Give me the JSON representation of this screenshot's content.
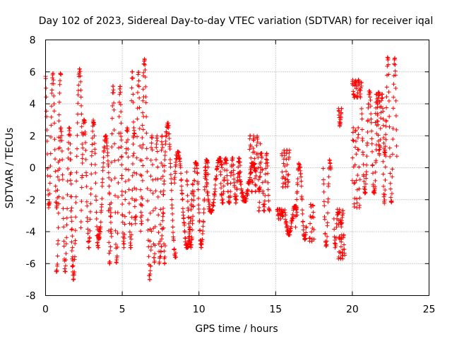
{
  "chart_data": {
    "type": "scatter",
    "title": "Day 102 of 2023, Sidereal Day-to-day VTEC variation (SDTVAR) for receiver iqal",
    "xlabel": "GPS time / hours",
    "ylabel": "SDTVAR / TECUs",
    "xlim": [
      0,
      25
    ],
    "ylim": [
      -8,
      8
    ],
    "xticks": [
      "0",
      "5",
      "10",
      "15",
      "20",
      "25"
    ],
    "yticks": [
      "-8",
      "-6",
      "-4",
      "-2",
      "0",
      "2",
      "4",
      "6",
      "8"
    ],
    "grid": true,
    "marker": "plus",
    "color": "#ff0000",
    "series": [
      {
        "name": "SDTVAR",
        "segments": [
          {
            "x0": 0.0,
            "x1": 1.0,
            "lo": -2.5,
            "hi": 5.9
          },
          {
            "x0": 0.7,
            "x1": 1.8,
            "lo": -6.5,
            "hi": 2.5
          },
          {
            "x0": 1.6,
            "x1": 2.4,
            "lo": -7.0,
            "hi": 6.2
          },
          {
            "x0": 2.3,
            "x1": 3.5,
            "lo": -5.0,
            "hi": 3.0
          },
          {
            "x0": 3.4,
            "x1": 4.3,
            "lo": -4.5,
            "hi": 2.0
          },
          {
            "x0": 4.1,
            "x1": 5.0,
            "lo": -6.0,
            "hi": 5.1
          },
          {
            "x0": 4.9,
            "x1": 5.8,
            "lo": -5.0,
            "hi": 2.5
          },
          {
            "x0": 5.6,
            "x1": 6.4,
            "lo": -3.5,
            "hi": 6.0
          },
          {
            "x0": 6.2,
            "x1": 6.9,
            "lo": -7.0,
            "hi": 6.8
          },
          {
            "x0": 6.8,
            "x1": 7.8,
            "lo": -6.0,
            "hi": 2.0
          },
          {
            "x0": 7.5,
            "x1": 8.5,
            "lo": -5.6,
            "hi": 2.8
          },
          {
            "x0": 8.4,
            "x1": 9.6,
            "lo": -5.0,
            "hi": 1.0
          },
          {
            "x0": 9.2,
            "x1": 10.6,
            "lo": -5.0,
            "hi": 0.5
          },
          {
            "x0": 10.4,
            "x1": 11.5,
            "lo": -2.8,
            "hi": 0.6
          },
          {
            "x0": 11.4,
            "x1": 12.7,
            "lo": -2.2,
            "hi": 0.6
          },
          {
            "x0": 12.6,
            "x1": 13.7,
            "lo": -2.1,
            "hi": 0.3
          },
          {
            "x0": 13.3,
            "x1": 14.0,
            "lo": -1.5,
            "hi": 2.0
          },
          {
            "x0": 13.9,
            "x1": 14.6,
            "lo": -2.7,
            "hi": 0.9
          },
          {
            "x0": 15.1,
            "x1": 15.5,
            "lo": -3.2,
            "hi": -2.6
          },
          {
            "x0": 15.4,
            "x1": 15.9,
            "lo": -1.2,
            "hi": 1.1
          },
          {
            "x0": 15.6,
            "x1": 16.4,
            "lo": -4.2,
            "hi": -2.4
          },
          {
            "x0": 16.3,
            "x1": 17.0,
            "lo": -4.6,
            "hi": 0.3
          },
          {
            "x0": 17.2,
            "x1": 17.5,
            "lo": -4.6,
            "hi": -2.3
          },
          {
            "x0": 18.1,
            "x1": 18.6,
            "lo": -4.9,
            "hi": 0.5
          },
          {
            "x0": 18.8,
            "x1": 19.1,
            "lo": -5.0,
            "hi": -2.6
          },
          {
            "x0": 19.1,
            "x1": 19.5,
            "lo": -5.7,
            "hi": -4.2
          },
          {
            "x0": 19.1,
            "x1": 19.4,
            "lo": -3.7,
            "hi": -2.6
          },
          {
            "x0": 19.1,
            "x1": 19.3,
            "lo": 2.6,
            "hi": 3.7
          },
          {
            "x0": 20.0,
            "x1": 20.5,
            "lo": -2.5,
            "hi": 2.5
          },
          {
            "x0": 20.0,
            "x1": 20.6,
            "lo": 4.4,
            "hi": 5.5
          },
          {
            "x0": 20.6,
            "x1": 21.8,
            "lo": -1.6,
            "hi": 4.8
          },
          {
            "x0": 21.5,
            "x1": 22.2,
            "lo": 0.8,
            "hi": 4.6
          },
          {
            "x0": 22.0,
            "x1": 22.9,
            "lo": -2.3,
            "hi": 6.9
          }
        ]
      }
    ]
  }
}
